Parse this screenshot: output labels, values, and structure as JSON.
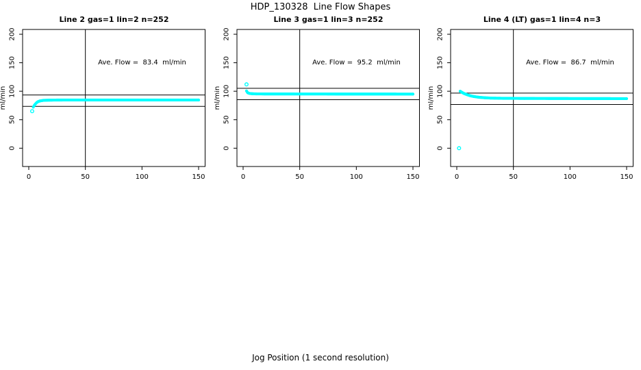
{
  "chart_data": {
    "type": "scatter",
    "title": "HDP_130328  Line Flow Shapes",
    "xlabel": "Jog Position (1 second resolution)",
    "ylabel": "ml/min",
    "x_ticks": [
      0,
      50,
      100,
      150
    ],
    "y_ticks": [
      0,
      50,
      100,
      150,
      200
    ],
    "xlim": [
      -4,
      156
    ],
    "ylim": [
      -38,
      208
    ],
    "grid": false,
    "point_color": "#00ffff",
    "axis_color": "#000000",
    "panels": [
      {
        "title": "Line 2 gas=1 lin=2 n=252",
        "n": 252,
        "ave_flow": 83.4,
        "annotation": "Ave. Flow =  83.4  ml/min",
        "vline_x": 50,
        "hlines": [
          93.4,
          73.4
        ],
        "band_curve": [
          [
            4,
            72
          ],
          [
            5,
            75.5
          ],
          [
            6,
            78
          ],
          [
            7,
            80
          ],
          [
            8,
            81.5
          ],
          [
            10,
            83
          ],
          [
            13,
            84
          ],
          [
            18,
            84.4
          ],
          [
            30,
            84.6
          ],
          [
            150,
            84.6
          ]
        ],
        "outlier_points": [
          [
            3,
            65
          ]
        ]
      },
      {
        "title": "Line 3 gas=1 lin=3 n=252",
        "n": 252,
        "ave_flow": 95.2,
        "annotation": "Ave. Flow =  95.2  ml/min",
        "vline_x": 50,
        "hlines": [
          105.2,
          85.2
        ],
        "band_curve": [
          [
            3,
            100.5
          ],
          [
            4,
            97.5
          ],
          [
            5,
            96.5
          ],
          [
            6,
            96
          ],
          [
            8,
            95.6
          ],
          [
            12,
            95.3
          ],
          [
            30,
            95.2
          ],
          [
            150,
            95
          ]
        ],
        "outlier_points": [
          [
            3,
            112
          ]
        ]
      },
      {
        "title": "Line 4 (LT) gas=1 lin=4 n=3",
        "n": 3,
        "ave_flow": 86.7,
        "annotation": "Ave. Flow =  86.7  ml/min",
        "vline_x": 50,
        "hlines": [
          96.7,
          76.7
        ],
        "band_curve": [
          [
            3,
            100
          ],
          [
            5,
            97.5
          ],
          [
            7,
            95.5
          ],
          [
            9,
            94
          ],
          [
            12,
            92
          ],
          [
            15,
            90.7
          ],
          [
            20,
            89.3
          ],
          [
            25,
            88.5
          ],
          [
            30,
            88
          ],
          [
            40,
            87.6
          ],
          [
            60,
            87.4
          ],
          [
            100,
            87.2
          ],
          [
            150,
            87
          ]
        ],
        "outlier_points": [
          [
            2,
            0
          ]
        ]
      }
    ]
  }
}
